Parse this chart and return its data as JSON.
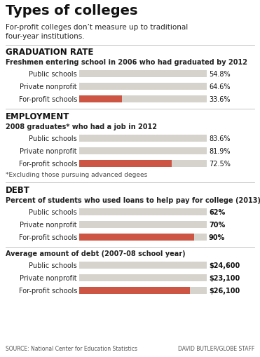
{
  "title": "Types of colleges",
  "subtitle_line1": "For-profit colleges don’t measure up to traditional",
  "subtitle_line2": "four-year institutions.",
  "bg_color": "#ffffff",
  "bar_gray": "#d6d3cc",
  "bar_red": "#cc5544",
  "sections": [
    {
      "section_title": "GRADUATION RATE",
      "section_subtitle": "Freshmen entering school in 2006 who had graduated by 2012",
      "subtitle_bold": true,
      "bars": [
        {
          "label": "Public schools",
          "value": 54.8,
          "max": 100,
          "color": "gray",
          "text": "54.8%",
          "bold_text": false
        },
        {
          "label": "Private nonprofit",
          "value": 64.6,
          "max": 100,
          "color": "gray",
          "text": "64.6%",
          "bold_text": false
        },
        {
          "label": "For-profit schools",
          "value": 33.6,
          "max": 100,
          "color": "red",
          "text": "33.6%",
          "bold_text": false
        }
      ],
      "footnote": null
    },
    {
      "section_title": "EMPLOYMENT",
      "section_subtitle": "2008 graduates* who had a job in 2012",
      "subtitle_bold": true,
      "bars": [
        {
          "label": "Public schools",
          "value": 83.6,
          "max": 100,
          "color": "gray",
          "text": "83.6%",
          "bold_text": false
        },
        {
          "label": "Private nonprofit",
          "value": 81.9,
          "max": 100,
          "color": "gray",
          "text": "81.9%",
          "bold_text": false
        },
        {
          "label": "For-profit schools",
          "value": 72.5,
          "max": 100,
          "color": "red",
          "text": "72.5%",
          "bold_text": false
        }
      ],
      "footnote": "*Excluding those pursuing advanced degees"
    },
    {
      "section_title": "DEBT",
      "section_subtitle": "Percent of students who used loans to help pay for college (2013)",
      "subtitle_bold": true,
      "bars": [
        {
          "label": "Public schools",
          "value": 62,
          "max": 100,
          "color": "gray",
          "text": "62%",
          "bold_text": true
        },
        {
          "label": "Private nonprofit",
          "value": 70,
          "max": 100,
          "color": "gray",
          "text": "70%",
          "bold_text": true
        },
        {
          "label": "For-profit schools",
          "value": 90,
          "max": 100,
          "color": "red",
          "text": "90%",
          "bold_text": true
        }
      ],
      "footnote": null
    },
    {
      "section_title": null,
      "section_subtitle": "Average amount of debt (2007-08 school year)",
      "subtitle_bold": true,
      "bars": [
        {
          "label": "Public schools",
          "value": 24600,
          "max": 30000,
          "color": "gray",
          "text": "$24,600",
          "bold_text": true
        },
        {
          "label": "Private nonprofit",
          "value": 23100,
          "max": 30000,
          "color": "gray",
          "text": "$23,100",
          "bold_text": true
        },
        {
          "label": "For-profit schools",
          "value": 26100,
          "max": 30000,
          "color": "red",
          "text": "$26,100",
          "bold_text": true
        }
      ],
      "footnote": null
    }
  ],
  "source_left": "SOURCE: National Center for Education Statistics",
  "source_right": "DAVID BUTLER/GLOBE STAFF"
}
